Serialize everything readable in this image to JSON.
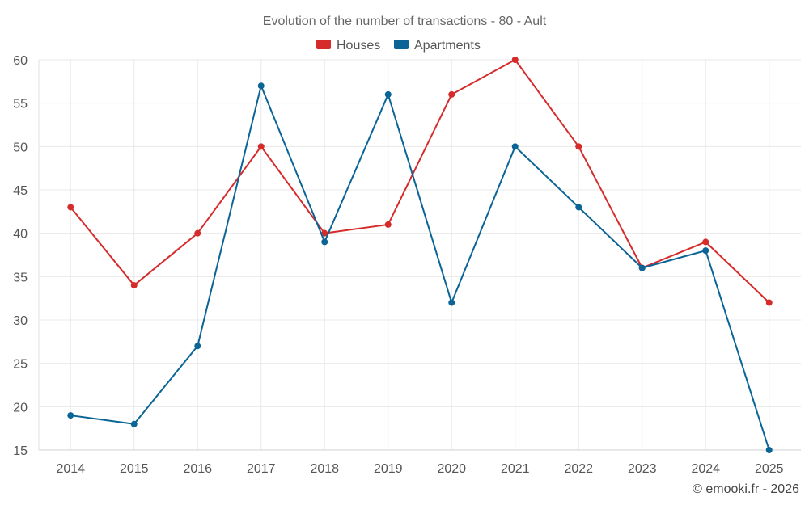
{
  "chart_data": {
    "type": "line",
    "title": "Evolution of the number of transactions - 80 - Ault",
    "categories": [
      "2014",
      "2015",
      "2016",
      "2017",
      "2018",
      "2019",
      "2020",
      "2021",
      "2022",
      "2023",
      "2024",
      "2025"
    ],
    "series": [
      {
        "name": "Houses",
        "color": "#d62b2b",
        "values": [
          43,
          34,
          40,
          50,
          40,
          41,
          56,
          60,
          50,
          36,
          39,
          32
        ]
      },
      {
        "name": "Apartments",
        "color": "#0a6496",
        "values": [
          19,
          18,
          27,
          57,
          39,
          56,
          32,
          50,
          43,
          36,
          38,
          15
        ]
      }
    ],
    "ylim": [
      15,
      60
    ],
    "yticks": [
      15,
      20,
      25,
      30,
      35,
      40,
      45,
      50,
      55,
      60
    ],
    "xlabel": "",
    "ylabel": "",
    "legend": "top-center",
    "grid": true
  },
  "credit": "© emooki.fr - 2026"
}
